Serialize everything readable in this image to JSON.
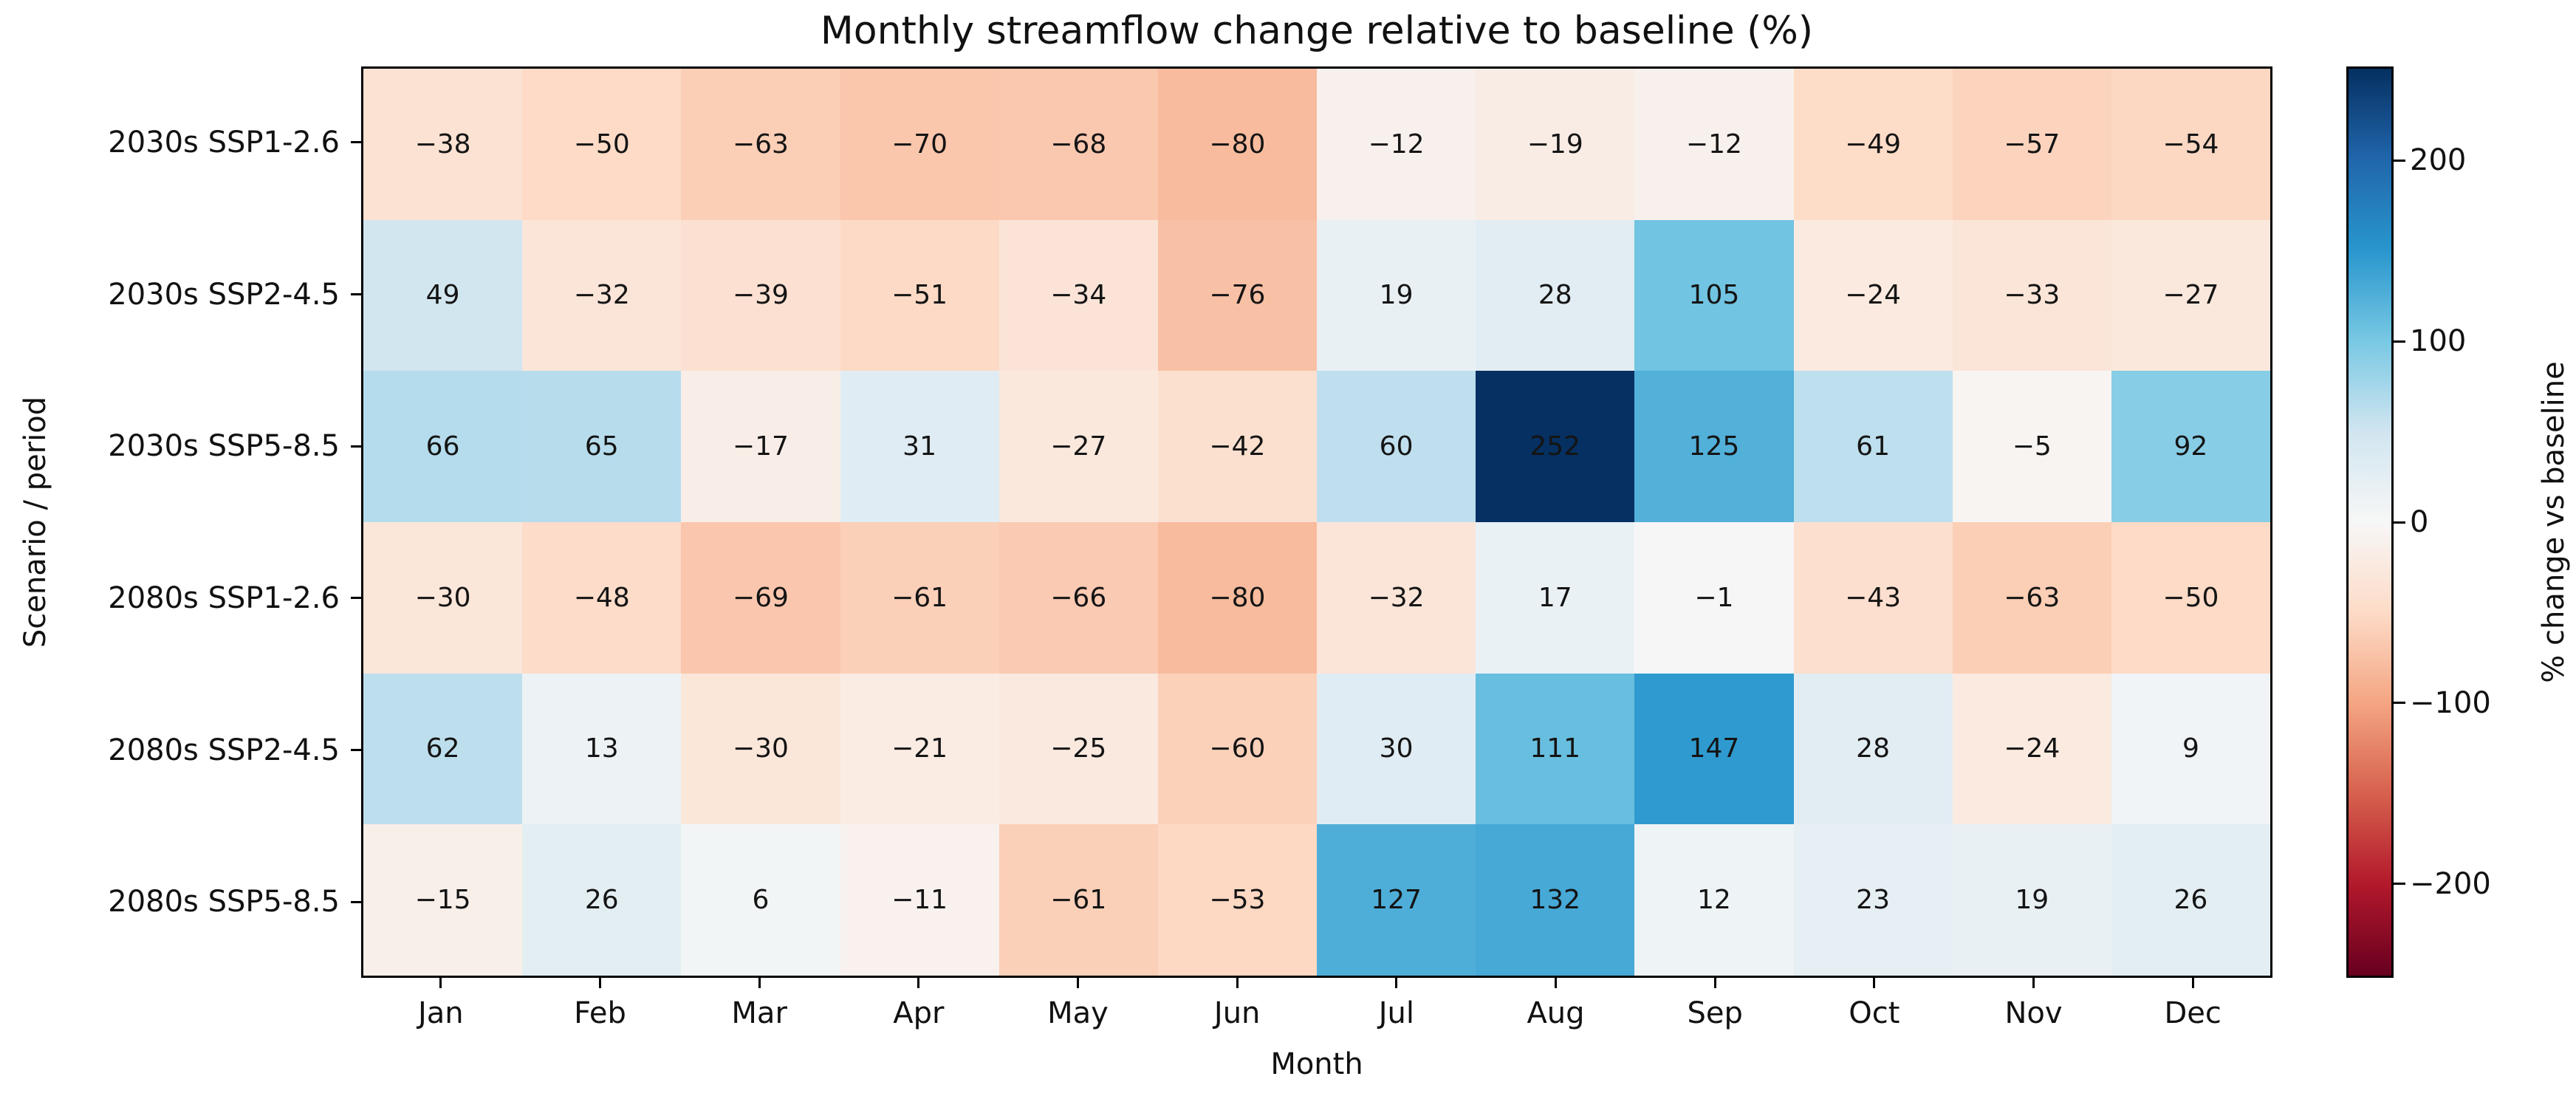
{
  "chart_data": {
    "type": "heatmap",
    "title": "Monthly streamflow change relative to baseline (%)",
    "xlabel": "Month",
    "ylabel": "Scenario / period",
    "categories_x": [
      "Jan",
      "Feb",
      "Mar",
      "Apr",
      "May",
      "Jun",
      "Jul",
      "Aug",
      "Sep",
      "Oct",
      "Nov",
      "Dec"
    ],
    "categories_y": [
      "2030s SSP1-2.6",
      "2030s SSP2-4.5",
      "2030s SSP5-8.5",
      "2080s SSP1-2.6",
      "2080s SSP2-4.5",
      "2080s SSP5-8.5"
    ],
    "values": [
      [
        -38,
        -50,
        -63,
        -70,
        -68,
        -80,
        -12,
        -19,
        -12,
        -49,
        -57,
        -54
      ],
      [
        49,
        -32,
        -39,
        -51,
        -34,
        -76,
        19,
        28,
        105,
        -24,
        -33,
        -27
      ],
      [
        66,
        65,
        -17,
        31,
        -27,
        -42,
        60,
        252,
        125,
        61,
        -5,
        92
      ],
      [
        -30,
        -48,
        -69,
        -61,
        -66,
        -80,
        -32,
        17,
        -1,
        -43,
        -63,
        -50
      ],
      [
        62,
        13,
        -30,
        -21,
        -25,
        -60,
        30,
        111,
        147,
        28,
        -24,
        9
      ],
      [
        -15,
        26,
        6,
        -11,
        -61,
        -53,
        127,
        132,
        12,
        23,
        19,
        26
      ]
    ],
    "annotations": true,
    "annotation_color": "#141414",
    "colormap": "RdBu",
    "colormap_stops": [
      "#67001f",
      "#b2182b",
      "#d6604d",
      "#f4a582",
      "#fddbc7",
      "#f7f7f7",
      "#d1e5f0",
      "#78c8e4",
      "#2896cd",
      "#2166ac",
      "#053061"
    ],
    "vmin": -252,
    "vmax": 252,
    "grid": false,
    "colorbar": {
      "label": "% change vs baseline",
      "ticks": [
        200,
        100,
        0,
        -100,
        -200
      ],
      "position": "right"
    }
  }
}
